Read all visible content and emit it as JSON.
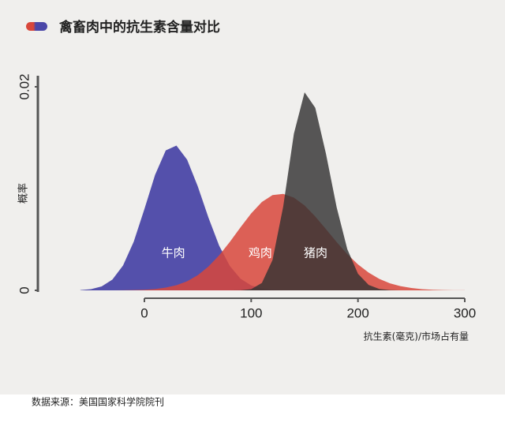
{
  "chart_data": {
    "type": "area",
    "title": "禽畜肉中的抗生素含量对比",
    "xlabel": "抗生素(毫克)/市场占有量",
    "ylabel": "概率",
    "source": "数据来源：美国国家科学院院刊",
    "xlim": [
      0,
      300
    ],
    "xticks": [
      0,
      100,
      200,
      300
    ],
    "ylim": [
      0,
      0.02
    ],
    "yticks": [
      0,
      0.02
    ],
    "x": [
      -60,
      -50,
      -40,
      -30,
      -20,
      -10,
      0,
      10,
      20,
      30,
      40,
      50,
      60,
      70,
      80,
      90,
      100,
      110,
      120,
      130,
      140,
      150,
      160,
      170,
      180,
      190,
      200,
      210,
      220,
      230,
      240,
      250,
      260,
      270,
      280,
      290,
      300
    ],
    "series": [
      {
        "name": "牛肉",
        "color": "#4b47a8",
        "values": [
          3e-05,
          0.00012,
          0.00039,
          0.00106,
          0.00244,
          0.00478,
          0.00798,
          0.01135,
          0.01375,
          0.01422,
          0.01284,
          0.01021,
          0.00714,
          0.00439,
          0.00239,
          0.00114,
          0.00048,
          0.00018,
          6e-05,
          1e-05,
          0,
          0,
          0,
          0,
          0,
          0,
          0,
          0,
          0,
          0,
          0,
          0,
          0,
          0,
          0,
          0,
          0
        ]
      },
      {
        "name": "鸡肉",
        "color": "#d8473b",
        "values": [
          0,
          0,
          0,
          0,
          1e-05,
          3e-05,
          6e-05,
          0.00013,
          0.00027,
          0.0005,
          0.00089,
          0.00149,
          0.00234,
          0.00344,
          0.00476,
          0.00619,
          0.00756,
          0.00868,
          0.00936,
          0.00948,
          0.00911,
          0.00834,
          0.00726,
          0.00602,
          0.00475,
          0.00356,
          0.00255,
          0.00174,
          0.00112,
          0.00069,
          0.00041,
          0.00023,
          0.00012,
          6e-05,
          3e-05,
          1e-05,
          1e-05
        ]
      },
      {
        "name": "猪肉",
        "color": "#333333",
        "values": [
          0,
          0,
          0,
          0,
          0,
          0,
          0,
          0,
          0,
          0,
          0,
          0,
          0,
          0,
          0,
          1e-05,
          0.00012,
          0.00073,
          0.00298,
          0.00824,
          0.0154,
          0.01946,
          0.01794,
          0.01343,
          0.00818,
          0.00405,
          0.00163,
          0.00053,
          0.00014,
          3e-05,
          0,
          0,
          0,
          0,
          0,
          0,
          0
        ]
      }
    ]
  }
}
